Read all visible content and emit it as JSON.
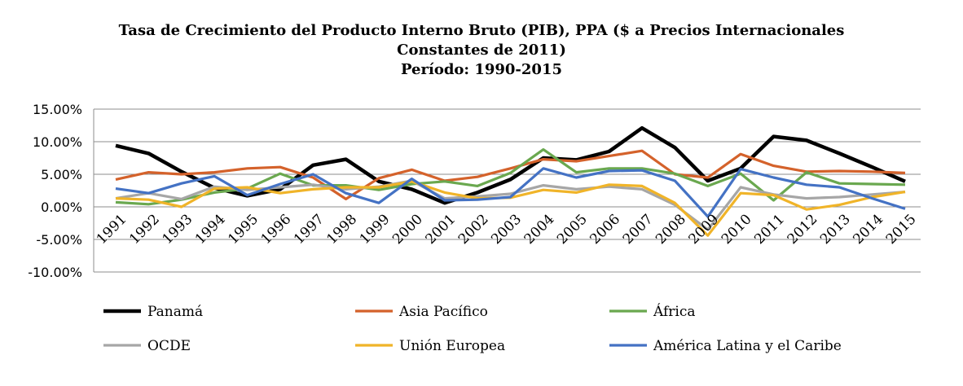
{
  "chart_data": {
    "type": "line",
    "title": [
      "Tasa de Crecimiento del Producto Interno Bruto (PIB), PPA ($ a Precios Internacionales",
      "Constantes de 2011)",
      "Período: 1990-2015"
    ],
    "xlabel": "",
    "ylabel": "",
    "ylim": [
      -10,
      15
    ],
    "yticks": [
      15,
      10,
      5,
      0,
      -5,
      -10
    ],
    "ytick_labels": [
      "15.00%",
      "10.00%",
      "5.00%",
      "0.00%",
      "-5.00%",
      "-10.00%"
    ],
    "x": [
      "1991",
      "1992",
      "1993",
      "1994",
      "1995",
      "1996",
      "1997",
      "1998",
      "1999",
      "2000",
      "2001",
      "2002",
      "2003",
      "2004",
      "2005",
      "2006",
      "2007",
      "2008",
      "2009",
      "2010",
      "2011",
      "2012",
      "2013",
      "2014",
      "2015"
    ],
    "grid": "horizontal",
    "legend_position": "bottom",
    "series": [
      {
        "name": "Panamá",
        "color": "#000000",
        "values": [
          9.4,
          8.2,
          5.4,
          2.9,
          1.7,
          2.7,
          6.4,
          7.3,
          3.9,
          2.7,
          0.6,
          2.2,
          4.2,
          7.5,
          7.2,
          8.5,
          12.1,
          9.1,
          4.0,
          5.9,
          10.8,
          10.2,
          8.2,
          6.1,
          3.9
        ]
      },
      {
        "name": "Asia Pacífico",
        "color": "#d4622b",
        "values": [
          4.2,
          5.3,
          5.0,
          5.3,
          5.9,
          6.1,
          4.5,
          1.2,
          4.4,
          5.7,
          4.0,
          4.6,
          5.9,
          7.3,
          7.0,
          7.8,
          8.6,
          5.0,
          4.5,
          8.1,
          6.3,
          5.4,
          5.5,
          5.4,
          5.2
        ]
      },
      {
        "name": "África",
        "color": "#6aa84f",
        "values": [
          0.7,
          0.4,
          1.1,
          2.2,
          2.8,
          5.1,
          3.3,
          3.3,
          2.6,
          3.5,
          3.9,
          3.2,
          5.2,
          8.8,
          5.3,
          5.9,
          5.9,
          5.1,
          3.2,
          5.1,
          1.0,
          5.3,
          3.6,
          3.5,
          3.4
        ]
      },
      {
        "name": "OCDE",
        "color": "#a6a6a6",
        "values": [
          1.3,
          2.1,
          1.2,
          3.1,
          2.6,
          3.0,
          3.4,
          2.7,
          3.1,
          4.0,
          1.3,
          1.6,
          2.0,
          3.3,
          2.7,
          3.1,
          2.7,
          0.3,
          -3.5,
          3.0,
          1.9,
          1.3,
          1.5,
          1.9,
          2.3
        ]
      },
      {
        "name": "Unión Europea",
        "color": "#f0b429",
        "values": [
          1.3,
          1.1,
          0.0,
          2.8,
          3.0,
          2.1,
          2.7,
          3.0,
          3.0,
          3.9,
          2.2,
          1.3,
          1.4,
          2.6,
          2.2,
          3.4,
          3.2,
          0.6,
          -4.4,
          2.1,
          1.8,
          -0.4,
          0.3,
          1.5,
          2.3
        ]
      },
      {
        "name": "América Latina y el Caribe",
        "color": "#4472c4",
        "values": [
          2.8,
          2.1,
          3.6,
          4.7,
          1.8,
          3.5,
          5.0,
          2.1,
          0.6,
          4.3,
          1.0,
          1.1,
          1.5,
          5.9,
          4.5,
          5.5,
          5.6,
          4.0,
          -1.5,
          5.8,
          4.5,
          3.4,
          3.0,
          1.3,
          -0.3
        ]
      }
    ]
  }
}
